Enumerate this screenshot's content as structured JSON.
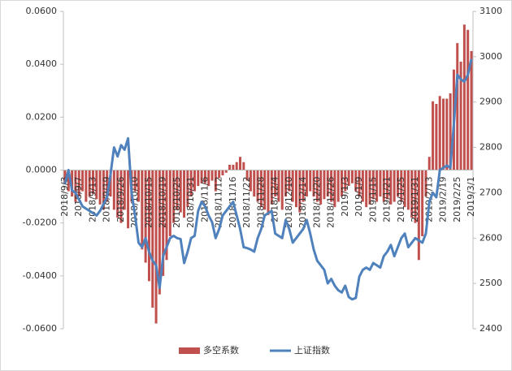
{
  "chart_data": {
    "type": "bar_line",
    "categories": [
      "2018/9/3",
      null,
      null,
      null,
      "2018/9/7",
      null,
      null,
      null,
      "2018/9/13",
      null,
      null,
      null,
      "2018/9/19",
      null,
      null,
      null,
      "2018/9/26",
      null,
      null,
      null,
      "2018/10/10",
      null,
      null,
      null,
      "2018/10/15",
      null,
      null,
      null,
      "2018/10/19",
      null,
      null,
      null,
      "2018/10/25",
      null,
      null,
      null,
      "2018/10/31",
      null,
      null,
      null,
      "2018/11/6",
      null,
      null,
      null,
      "2018/11/12",
      null,
      null,
      null,
      "2018/11/16",
      null,
      null,
      null,
      "2018/11/22",
      null,
      null,
      null,
      "2018/11/28",
      null,
      null,
      null,
      "2018/12/4",
      null,
      null,
      null,
      "2018/12/10",
      null,
      null,
      null,
      "2018/12/14",
      null,
      null,
      null,
      "2018/12/20",
      null,
      null,
      null,
      "2018/12/26",
      null,
      null,
      null,
      "2019/1/3",
      null,
      null,
      null,
      "2019/1/9",
      null,
      null,
      null,
      "2019/1/15",
      null,
      null,
      null,
      "2019/1/21",
      null,
      null,
      null,
      "2019/1/25",
      null,
      null,
      null,
      "2019/1/31",
      null,
      null,
      null,
      "2019/2/13",
      null,
      null,
      null,
      "2019/2/19",
      null,
      null,
      null,
      "2019/2/25",
      null,
      null,
      null,
      "2019/3/1"
    ],
    "series": [
      {
        "name": "多空系数",
        "type": "bar",
        "color": "#c0504d",
        "values": [
          -0.005,
          -0.008,
          -0.01,
          -0.012,
          -0.01,
          -0.008,
          -0.012,
          -0.01,
          -0.009,
          -0.011,
          -0.013,
          -0.015,
          -0.012,
          -0.01,
          -0.015,
          -0.018,
          -0.02,
          -0.015,
          -0.022,
          -0.012,
          -0.008,
          -0.012,
          -0.03,
          -0.035,
          -0.042,
          -0.052,
          -0.058,
          -0.047,
          -0.04,
          -0.034,
          -0.025,
          -0.02,
          -0.015,
          -0.016,
          -0.018,
          -0.014,
          -0.01,
          -0.008,
          -0.006,
          -0.005,
          -0.005,
          -0.006,
          -0.004,
          -0.008,
          -0.003,
          -0.002,
          -0.001,
          0.002,
          0.002,
          0.003,
          0.005,
          0.003,
          -0.004,
          -0.008,
          -0.01,
          -0.012,
          -0.014,
          -0.015,
          -0.017,
          -0.013,
          -0.01,
          -0.012,
          -0.015,
          -0.01,
          -0.008,
          -0.012,
          -0.014,
          -0.016,
          -0.012,
          -0.01,
          -0.008,
          -0.01,
          -0.012,
          -0.013,
          -0.011,
          -0.01,
          -0.012,
          -0.014,
          -0.012,
          -0.01,
          -0.008,
          -0.006,
          -0.005,
          -0.008,
          -0.01,
          -0.012,
          -0.014,
          -0.013,
          -0.011,
          -0.012,
          -0.01,
          -0.012,
          -0.011,
          -0.013,
          -0.012,
          -0.01,
          -0.012,
          -0.014,
          -0.015,
          -0.018,
          -0.02,
          -0.034,
          -0.025,
          -0.01,
          0.005,
          0.026,
          0.025,
          0.028,
          0.027,
          0.027,
          0.029,
          0.038,
          0.048,
          0.041,
          0.055,
          0.053,
          0.045
        ]
      },
      {
        "name": "上证指数",
        "type": "line",
        "axis": "y2",
        "color": "#4f81bd",
        "values": [
          2720,
          2750,
          2705,
          2700,
          2685,
          2670,
          2665,
          2660,
          2655,
          2650,
          2660,
          2675,
          2690,
          2740,
          2800,
          2780,
          2805,
          2795,
          2820,
          2700,
          2650,
          2590,
          2580,
          2600,
          2570,
          2550,
          2540,
          2490,
          2560,
          2580,
          2600,
          2605,
          2600,
          2598,
          2545,
          2570,
          2600,
          2605,
          2660,
          2680,
          2670,
          2650,
          2635,
          2600,
          2620,
          2650,
          2660,
          2670,
          2680,
          2650,
          2620,
          2580,
          2578,
          2575,
          2570,
          2600,
          2620,
          2650,
          2655,
          2660,
          2610,
          2605,
          2600,
          2640,
          2620,
          2590,
          2600,
          2610,
          2620,
          2640,
          2610,
          2575,
          2550,
          2540,
          2530,
          2500,
          2510,
          2495,
          2485,
          2480,
          2495,
          2470,
          2465,
          2468,
          2515,
          2530,
          2535,
          2530,
          2545,
          2540,
          2535,
          2560,
          2570,
          2585,
          2560,
          2580,
          2600,
          2610,
          2580,
          2590,
          2600,
          2595,
          2590,
          2610,
          2680,
          2700,
          2690,
          2750,
          2755,
          2760,
          2755,
          2850,
          2960,
          2950,
          2945,
          2960,
          2995
        ]
      }
    ],
    "ylim": [
      -0.06,
      0.06
    ],
    "yticks": [
      {
        "value": -0.06,
        "label": "-0.0600"
      },
      {
        "value": -0.04,
        "label": "-0.0400"
      },
      {
        "value": -0.02,
        "label": "-0.0200"
      },
      {
        "value": 0,
        "label": "0.0000"
      },
      {
        "value": 0.02,
        "label": "0.0200"
      },
      {
        "value": 0.04,
        "label": "0.0400"
      },
      {
        "value": 0.06,
        "label": "0.0600"
      }
    ],
    "y2lim": [
      2400,
      3100
    ],
    "y2ticks": [
      2400,
      2500,
      2600,
      2700,
      2800,
      2900,
      3000,
      3100
    ],
    "legend": "bottom"
  }
}
